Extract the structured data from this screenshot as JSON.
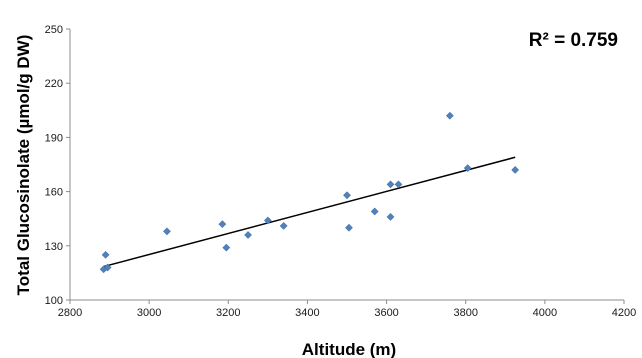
{
  "chart_data": {
    "type": "scatter",
    "title": "",
    "xlabel": "Altitude (m)",
    "ylabel": "Total Glucosinolate (µmol/g DW)",
    "xlim": [
      2800,
      4200
    ],
    "ylim": [
      100,
      250
    ],
    "xticks": [
      2800,
      3000,
      3200,
      3400,
      3600,
      3800,
      4000,
      4200
    ],
    "yticks": [
      100,
      130,
      160,
      190,
      220,
      250
    ],
    "grid": false,
    "legend": "none",
    "marker_color": "#4f81bd",
    "trendline_color": "#000000",
    "annotation": "R² = 0.759",
    "series": [
      {
        "points": [
          [
            2885,
            117
          ],
          [
            2890,
            125
          ],
          [
            2895,
            118
          ],
          [
            3045,
            138
          ],
          [
            3185,
            142
          ],
          [
            3195,
            129
          ],
          [
            3250,
            136
          ],
          [
            3300,
            144
          ],
          [
            3340,
            141
          ],
          [
            3500,
            158
          ],
          [
            3505,
            140
          ],
          [
            3570,
            149
          ],
          [
            3610,
            164
          ],
          [
            3610,
            146
          ],
          [
            3630,
            164
          ],
          [
            3760,
            202
          ],
          [
            3805,
            173
          ],
          [
            3925,
            172
          ]
        ]
      }
    ],
    "trendline": {
      "x": [
        2885,
        3925
      ],
      "y": [
        118.5,
        179
      ]
    }
  }
}
